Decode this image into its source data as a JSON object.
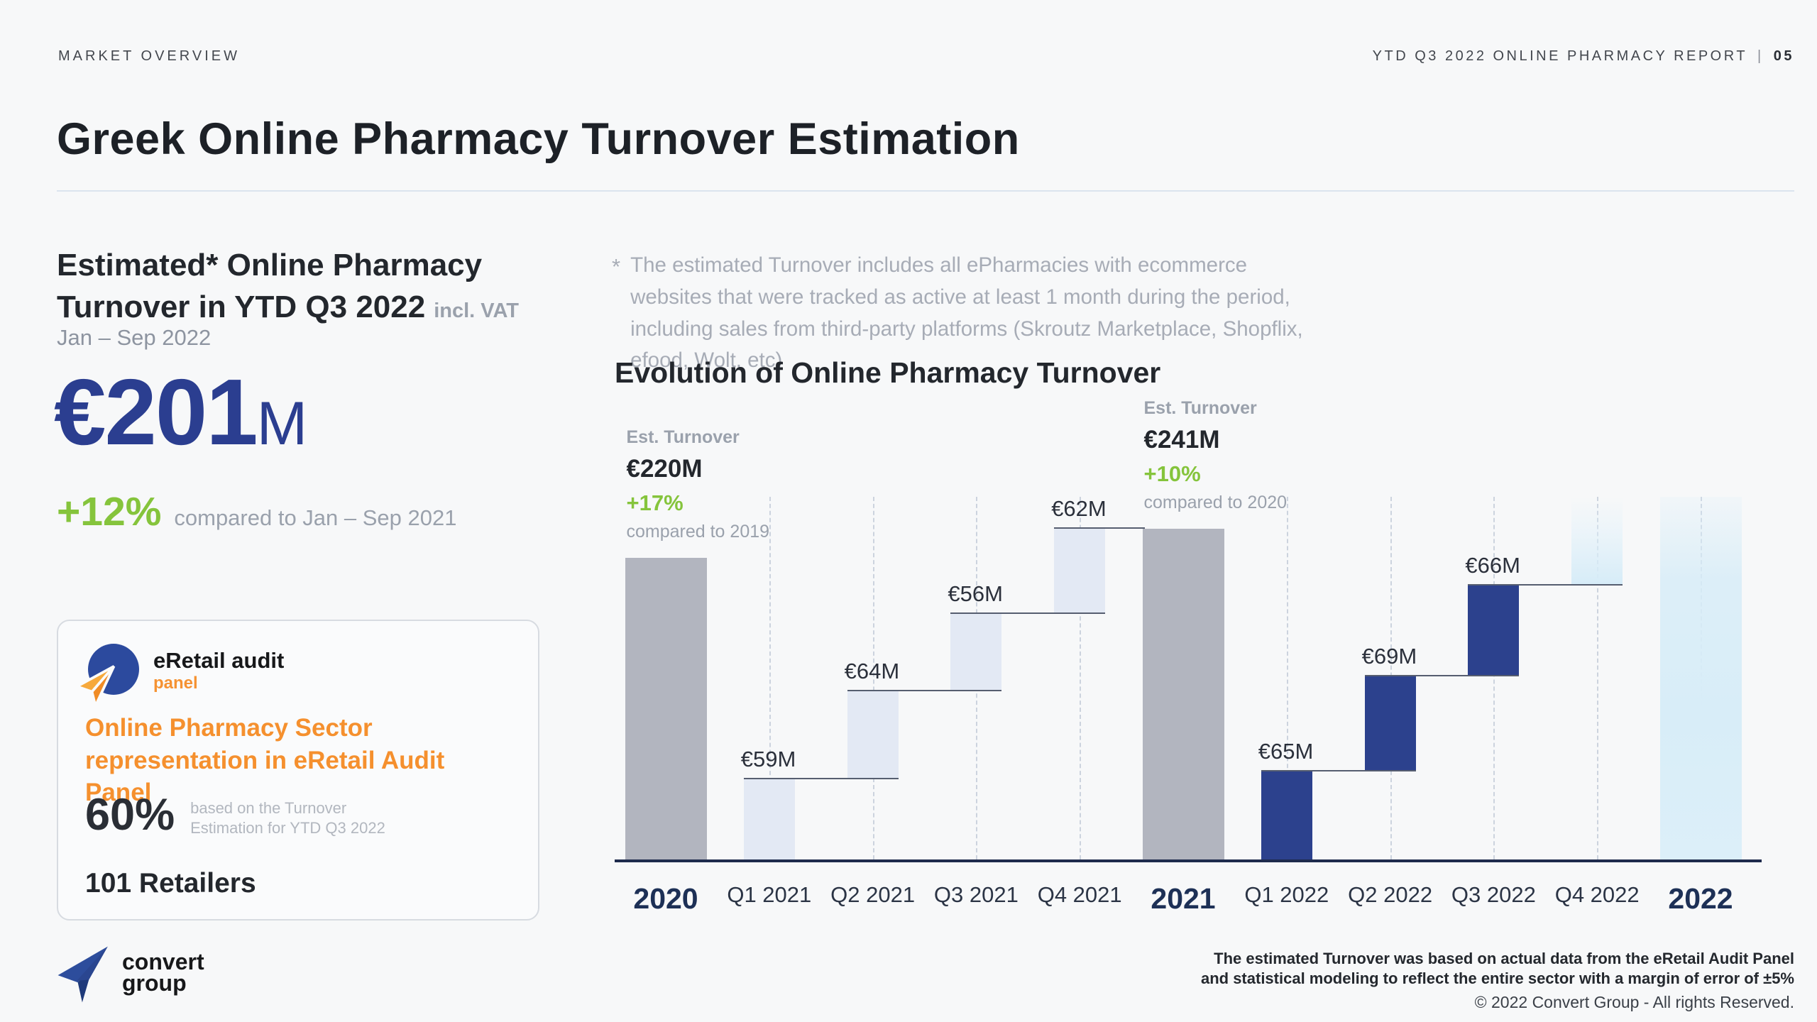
{
  "header": {
    "left": "MARKET OVERVIEW",
    "right_report": "YTD Q3 2022 ONLINE PHARMACY REPORT",
    "right_separator": "|",
    "right_page": "05"
  },
  "title": "Greek Online Pharmacy Turnover Estimation",
  "left_panel": {
    "heading_line1": "Estimated* Online Pharmacy",
    "heading_line2": "Turnover in YTD Q3 2022",
    "heading_suffix": "incl. VAT",
    "period": "Jan – Sep 2022",
    "stat_value": "€201",
    "stat_unit": "M",
    "delta": "+12%",
    "delta_note": "compared to Jan – Sep 2021",
    "card": {
      "logo_title": "eRetail audit",
      "logo_subtitle": "panel",
      "heading": "Online Pharmacy Sector representation in eRetail Audit Panel",
      "stat": "60%",
      "stat_note": "based on the Turnover Estimation for YTD Q3 2022",
      "retailers": "101 Retailers"
    }
  },
  "right_panel": {
    "footnote_marker": "*",
    "footnote": "The estimated Turnover includes all ePharmacies with ecommerce websites that were tracked as active at least 1 month during the period, including sales from third-party platforms (Skroutz Marketplace, Shopflix, efood, Wolt, etc)",
    "chart_title": "Evolution of Online Pharmacy Turnover"
  },
  "chart_data": {
    "type": "bar",
    "subtype": "waterfall",
    "title": "Evolution of Online Pharmacy Turnover",
    "unit": "EUR millions",
    "ylim": [
      0,
      264
    ],
    "grid": "dashed-vertical",
    "legend": "none",
    "bars": [
      {
        "label": "2020",
        "kind": "total",
        "start": 0,
        "value": 220,
        "color_key": "year_gray"
      },
      {
        "label": "Q1 2021",
        "kind": "increment",
        "start": 0,
        "value": 59,
        "display": "€59M",
        "color_key": "quarter_light"
      },
      {
        "label": "Q2 2021",
        "kind": "increment",
        "start": 59,
        "value": 64,
        "display": "€64M",
        "color_key": "quarter_light"
      },
      {
        "label": "Q3 2021",
        "kind": "increment",
        "start": 123,
        "value": 56,
        "display": "€56M",
        "color_key": "quarter_light"
      },
      {
        "label": "Q4 2021",
        "kind": "increment",
        "start": 179,
        "value": 62,
        "display": "€62M",
        "color_key": "quarter_light"
      },
      {
        "label": "2021",
        "kind": "total",
        "start": 0,
        "value": 241,
        "color_key": "year_gray"
      },
      {
        "label": "Q1 2022",
        "kind": "increment",
        "start": 0,
        "value": 65,
        "display": "€65M",
        "color_key": "quarter_dark"
      },
      {
        "label": "Q2 2022",
        "kind": "increment",
        "start": 65,
        "value": 69,
        "display": "€69M",
        "color_key": "quarter_dark"
      },
      {
        "label": "Q3 2022",
        "kind": "increment",
        "start": 134,
        "value": 66,
        "display": "€66M",
        "color_key": "quarter_dark"
      },
      {
        "label": "Q4 2022",
        "kind": "placeholder",
        "start": 200,
        "value": null,
        "color_key": "placeholder_fade"
      },
      {
        "label": "2022",
        "kind": "total_placeholder",
        "start": 0,
        "value": null,
        "color_key": "year_fade"
      }
    ],
    "annotations": [
      {
        "bar": "2020",
        "title": "Est. Turnover",
        "value": "€220M",
        "delta": "+17%",
        "delta_note": "compared to 2019"
      },
      {
        "bar": "2021",
        "title": "Est. Turnover",
        "value": "€241M",
        "delta": "+10%",
        "delta_note": "compared to 2020"
      }
    ]
  },
  "footer": {
    "logo_line1": "convert",
    "logo_line2": "group",
    "note_line1": "The estimated Turnover was based on actual data from the eRetail Audit Panel",
    "note_line2": "and statistical modeling to reflect the entire sector with a margin of error of ±5%",
    "copyright": "© 2022 Convert Group - All rights Reserved."
  },
  "colors": {
    "accent_blue": "#2b3e90",
    "accent_green": "#85c43c",
    "accent_orange": "#f5902e",
    "bar_quarter_2021": "#e3e9f4",
    "bar_year": "#b2b5bf",
    "bar_quarter_2022": "#2c418d",
    "bar_fade": "#d8edf8",
    "axis": "#1e2b4d"
  }
}
